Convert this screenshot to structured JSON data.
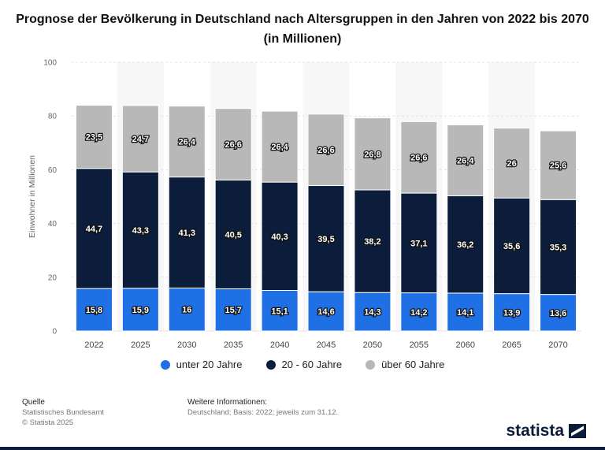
{
  "chart_data": {
    "type": "bar",
    "stacked": true,
    "title": "Prognose der Bevölkerung in Deutschland nach Altersgruppen in den Jahren von 2022 bis 2070 (in Millionen)",
    "xlabel": "",
    "ylabel": "Einwohner in Millionen",
    "ylim": [
      0,
      100
    ],
    "yticks": [
      "0",
      "20",
      "40",
      "60",
      "80",
      "100"
    ],
    "grid": true,
    "legend_position": "bottom",
    "categories": [
      "2022",
      "2025",
      "2030",
      "2035",
      "2040",
      "2045",
      "2050",
      "2055",
      "2060",
      "2065",
      "2070"
    ],
    "series": [
      {
        "name": "unter 20 Jahre",
        "color": "#1f6fe5",
        "values": [
          15.8,
          15.9,
          16,
          15.7,
          15.1,
          14.6,
          14.3,
          14.2,
          14.1,
          13.9,
          13.6
        ],
        "labels": [
          "15,8",
          "15,9",
          "16",
          "15,7",
          "15,1",
          "14,6",
          "14,3",
          "14,2",
          "14,1",
          "13,9",
          "13,6"
        ]
      },
      {
        "name": "20 - 60 Jahre",
        "color": "#0b1d3a",
        "values": [
          44.7,
          43.3,
          41.3,
          40.5,
          40.3,
          39.5,
          38.2,
          37.1,
          36.2,
          35.6,
          35.3
        ],
        "labels": [
          "44,7",
          "43,3",
          "41,3",
          "40,5",
          "40,3",
          "39,5",
          "38,2",
          "37,1",
          "36,2",
          "35,6",
          "35,3"
        ]
      },
      {
        "name": "über 60 Jahre",
        "color": "#b8b8b8",
        "values": [
          23.5,
          24.7,
          26.4,
          26.6,
          26.4,
          26.6,
          26.8,
          26.6,
          26.4,
          26,
          25.6
        ],
        "labels": [
          "23,5",
          "24,7",
          "26,4",
          "26,6",
          "26,4",
          "26,6",
          "26,8",
          "26,6",
          "26,4",
          "26",
          "25,6"
        ]
      }
    ]
  },
  "footer": {
    "source_heading": "Quelle",
    "source_lines": [
      "Statistisches Bundesamt",
      "© Statista 2025"
    ],
    "info_heading": "Weitere Informationen:",
    "info_text": "Deutschland; Basis: 2022; jeweils zum 31.12."
  },
  "brand": {
    "name": "statista"
  }
}
